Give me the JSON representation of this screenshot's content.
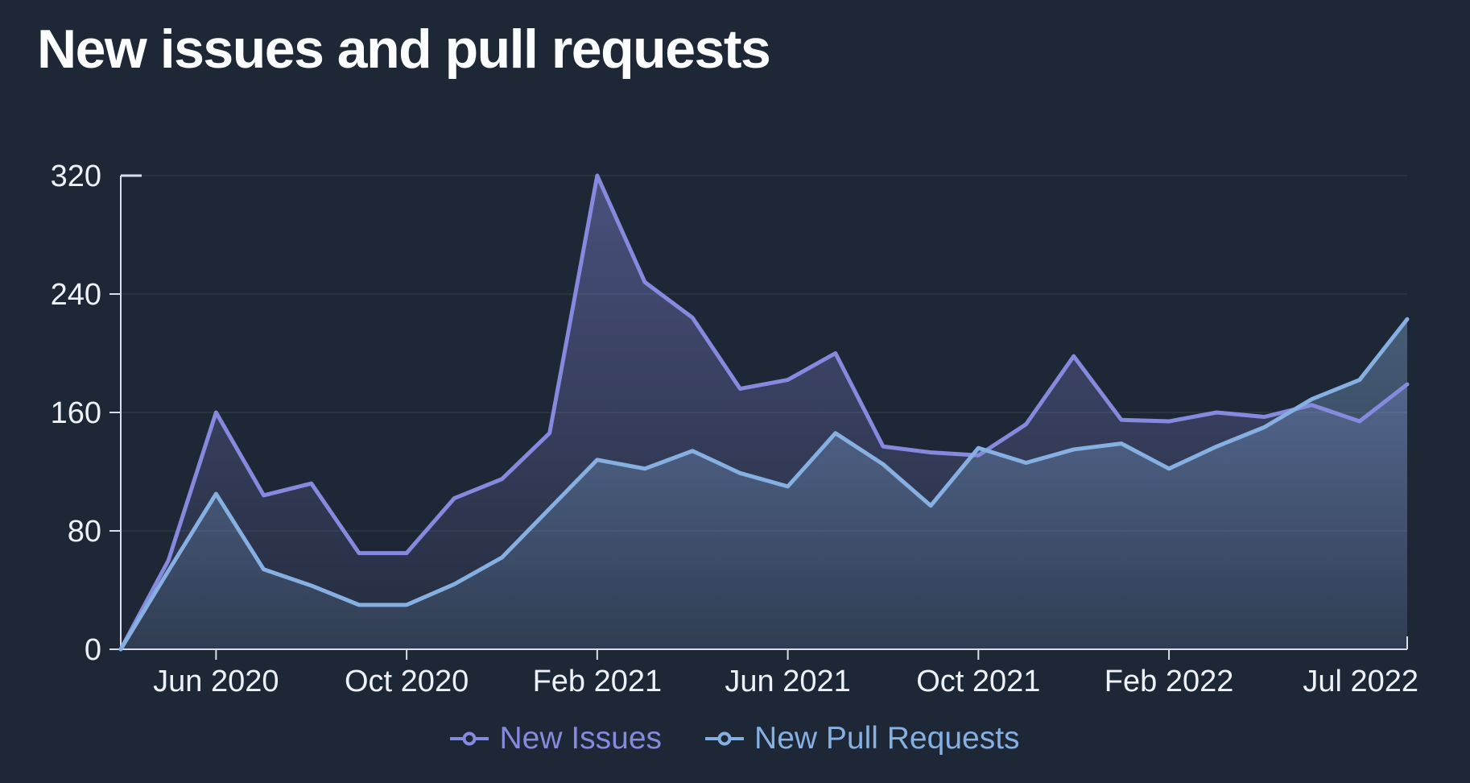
{
  "title": "New issues and pull requests",
  "colors": {
    "background": "#1e2735",
    "axis": "#d9dee8",
    "grid": "rgba(255,255,255,0.08)",
    "text": "#eef2f8",
    "new_issues": "#868ade",
    "new_pull_requests": "#85b0e1"
  },
  "legend": {
    "items": [
      {
        "label": "New Issues",
        "color": "#868ade"
      },
      {
        "label": "New Pull Requests",
        "color": "#85b0e1"
      }
    ]
  },
  "chart_data": {
    "type": "line",
    "title": "New issues and pull requests",
    "area": true,
    "grid": "horizontal",
    "legend_position": "bottom",
    "ylim": [
      0,
      320
    ],
    "yticks": [
      0,
      80,
      160,
      240,
      320
    ],
    "x": [
      "Apr 2020",
      "May 2020",
      "Jun 2020",
      "Jul 2020",
      "Aug 2020",
      "Sep 2020",
      "Oct 2020",
      "Nov 2020",
      "Dec 2020",
      "Jan 2021",
      "Feb 2021",
      "Mar 2021",
      "Apr 2021",
      "May 2021",
      "Jun 2021",
      "Jul 2021",
      "Aug 2021",
      "Sep 2021",
      "Oct 2021",
      "Nov 2021",
      "Dec 2021",
      "Jan 2022",
      "Feb 2022",
      "Mar 2022",
      "Apr 2022",
      "May 2022",
      "Jun 2022",
      "Jul 2022"
    ],
    "xtick_labels": [
      "Jun 2020",
      "Oct 2020",
      "Feb 2021",
      "Jun 2021",
      "Oct 2021",
      "Feb 2022",
      "Jul 2022"
    ],
    "xtick_indices": [
      2,
      6,
      10,
      14,
      18,
      22,
      27
    ],
    "series": [
      {
        "name": "New Issues",
        "color": "#868ade",
        "values": [
          0,
          60,
          160,
          104,
          112,
          65,
          65,
          102,
          115,
          146,
          320,
          248,
          224,
          176,
          182,
          200,
          137,
          133,
          131,
          152,
          198,
          155,
          154,
          160,
          157,
          165,
          154,
          179
        ]
      },
      {
        "name": "New Pull Requests",
        "color": "#85b0e1",
        "values": [
          0,
          53,
          105,
          54,
          43,
          30,
          30,
          44,
          62,
          95,
          128,
          122,
          134,
          119,
          110,
          146,
          125,
          97,
          136,
          126,
          135,
          139,
          122,
          137,
          150,
          169,
          182,
          223
        ]
      }
    ]
  }
}
